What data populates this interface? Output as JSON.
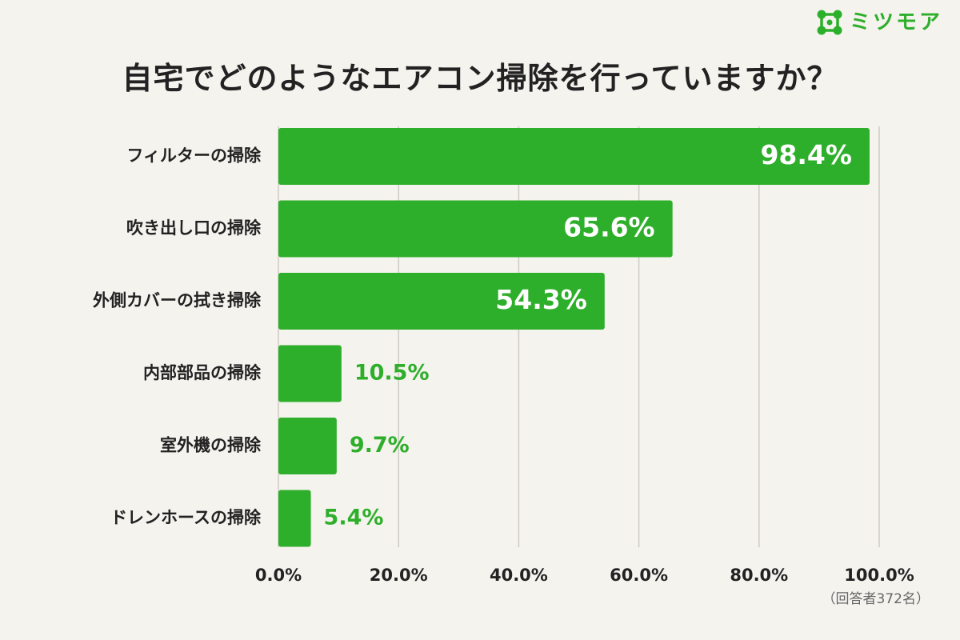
{
  "brand": {
    "name": "ミツモア",
    "icon": "mitsumore-logo-icon",
    "color": "#2eaf2b"
  },
  "respondents": "（回答者372名）",
  "colors": {
    "bar": "#2eaf2b",
    "inside_label": "#ffffff",
    "outside_label": "#2eaf2b",
    "grid": "#cfcbc4",
    "background": "#f5f3ee"
  },
  "chart_data": {
    "type": "bar",
    "orientation": "horizontal",
    "title": "自宅でどのようなエアコン掃除を行っていますか？",
    "categories": [
      "フィルターの掃除",
      "吹き出し口の掃除",
      "外側カバーの拭き掃除",
      "内部部品の掃除",
      "室外機の掃除",
      "ドレンホースの掃除"
    ],
    "values": [
      98.4,
      65.6,
      54.3,
      10.5,
      9.7,
      5.4
    ],
    "value_labels": [
      "98.4%",
      "65.6%",
      "54.3%",
      "10.5%",
      "9.7%",
      "5.4%"
    ],
    "xlim": [
      0,
      100
    ],
    "xticks": [
      0,
      20,
      40,
      60,
      80,
      100
    ],
    "xtick_labels": [
      "0.0%",
      "20.0%",
      "40.0%",
      "60.0%",
      "80.0%",
      "100.0%"
    ],
    "grid": true,
    "legend": "none"
  }
}
